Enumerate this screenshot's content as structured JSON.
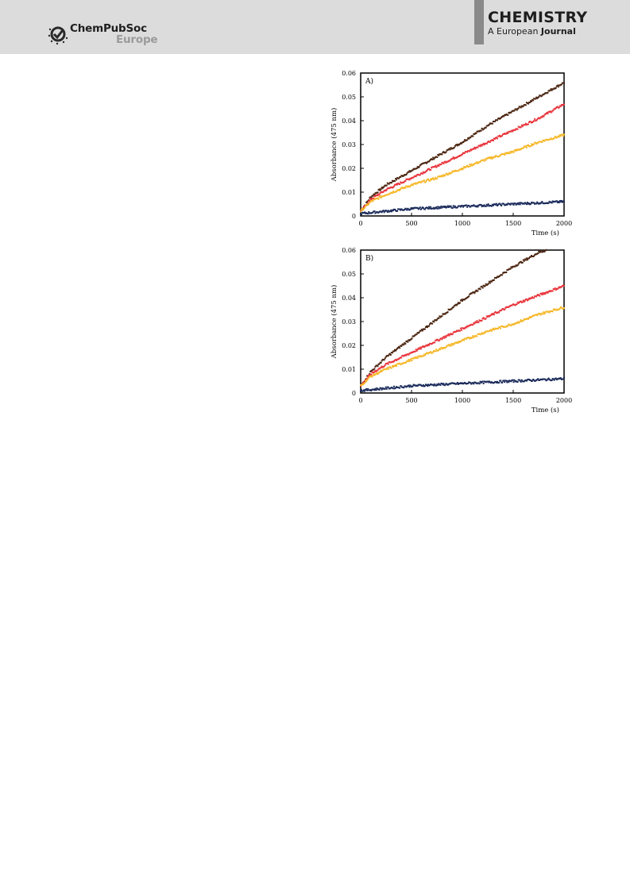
{
  "header": {
    "publisher": {
      "name": "ChemPubSoc",
      "region": "Europe"
    },
    "journal": {
      "title": "CHEMISTRY",
      "subtitle_prefix": "A European",
      "subtitle_bold": "Journal"
    }
  },
  "colors": {
    "header_bg": "#dcdcdc",
    "series_brown": "#4a2410",
    "series_red": "#e8353c",
    "series_yellow": "#f6b829",
    "series_navy": "#1a2a5a"
  },
  "chart_data": [
    {
      "type": "scatter",
      "panel_label": "A)",
      "xlabel": "Time (s)",
      "ylabel": "Absorbance (475 nm)",
      "xlim": [
        0,
        2000
      ],
      "ylim": [
        0,
        0.06
      ],
      "xticks": [
        "0",
        "500",
        "1000",
        "1500",
        "2000"
      ],
      "yticks": [
        "0",
        "0.01",
        "0.02",
        "0.03",
        "0.04",
        "0.05",
        "0.06"
      ],
      "grid": false,
      "series": [
        {
          "color": "#4a2410",
          "x": [
            0,
            100,
            250,
            500,
            750,
            1000,
            1250,
            1500,
            1750,
            2000
          ],
          "y": [
            0.002,
            0.008,
            0.013,
            0.019,
            0.025,
            0.031,
            0.038,
            0.044,
            0.05,
            0.056
          ]
        },
        {
          "color": "#e8353c",
          "x": [
            0,
            100,
            250,
            500,
            750,
            1000,
            1250,
            1500,
            1750,
            2000
          ],
          "y": [
            0.002,
            0.007,
            0.011,
            0.016,
            0.021,
            0.026,
            0.031,
            0.036,
            0.041,
            0.047
          ]
        },
        {
          "color": "#f6b829",
          "x": [
            0,
            100,
            250,
            500,
            750,
            1000,
            1250,
            1500,
            1750,
            2000
          ],
          "y": [
            0.002,
            0.006,
            0.009,
            0.013,
            0.016,
            0.02,
            0.024,
            0.027,
            0.031,
            0.034
          ]
        },
        {
          "color": "#1a2a5a",
          "x": [
            0,
            250,
            500,
            750,
            1000,
            1250,
            1500,
            1750,
            2000
          ],
          "y": [
            0.001,
            0.002,
            0.003,
            0.0035,
            0.004,
            0.0045,
            0.005,
            0.0055,
            0.006
          ]
        }
      ]
    },
    {
      "type": "scatter",
      "panel_label": "B)",
      "xlabel": "Time (s)",
      "ylabel": "Absorbance (475 nm)",
      "xlim": [
        0,
        2000
      ],
      "ylim": [
        0,
        0.06
      ],
      "xticks": [
        "0",
        "500",
        "1000",
        "1500",
        "2000"
      ],
      "yticks": [
        "0",
        "0.01",
        "0.02",
        "0.03",
        "0.04",
        "0.05",
        "0.06"
      ],
      "grid": false,
      "series": [
        {
          "color": "#4a2410",
          "x": [
            0,
            100,
            250,
            500,
            750,
            1000,
            1250,
            1500,
            1750,
            1830
          ],
          "y": [
            0.003,
            0.009,
            0.015,
            0.023,
            0.031,
            0.039,
            0.046,
            0.053,
            0.059,
            0.06
          ]
        },
        {
          "color": "#e8353c",
          "x": [
            0,
            100,
            250,
            500,
            750,
            1000,
            1250,
            1500,
            1750,
            2000
          ],
          "y": [
            0.003,
            0.008,
            0.012,
            0.017,
            0.022,
            0.027,
            0.032,
            0.037,
            0.041,
            0.045
          ]
        },
        {
          "color": "#f6b829",
          "x": [
            0,
            100,
            250,
            500,
            750,
            1000,
            1250,
            1500,
            1750,
            2000
          ],
          "y": [
            0.003,
            0.007,
            0.01,
            0.014,
            0.018,
            0.022,
            0.026,
            0.029,
            0.033,
            0.036
          ]
        },
        {
          "color": "#1a2a5a",
          "x": [
            0,
            250,
            500,
            750,
            1000,
            1250,
            1500,
            1750,
            2000
          ],
          "y": [
            0.001,
            0.002,
            0.003,
            0.0035,
            0.004,
            0.0045,
            0.005,
            0.0055,
            0.006
          ]
        }
      ]
    }
  ]
}
